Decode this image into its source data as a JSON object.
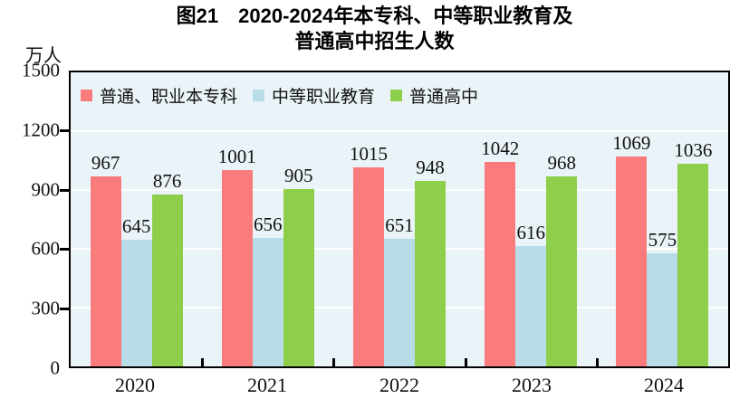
{
  "title": {
    "line1": "图21　2020-2024年本专科、中等职业教育及",
    "line2": "普通高中招生人数"
  },
  "unit_label": "万人",
  "colors": {
    "page_bg": "#ffffff",
    "plot_bg": "#eaf3f8",
    "gridline": "#ffffff",
    "axis": "#000000",
    "text": "#111111"
  },
  "chart_data": {
    "type": "bar",
    "title": "图21 2020-2024年本专科、中等职业教育及普通高中招生人数",
    "ylabel": "万人",
    "categories": [
      "2020",
      "2021",
      "2022",
      "2023",
      "2024"
    ],
    "series": [
      {
        "name": "普通、职业本专科",
        "color": "#f97b7b",
        "values": [
          967,
          1001,
          1015,
          1042,
          1069
        ]
      },
      {
        "name": "中等职业教育",
        "color": "#b9dce9",
        "values": [
          645,
          656,
          651,
          616,
          575
        ]
      },
      {
        "name": "普通高中",
        "color": "#8dce4b",
        "values": [
          876,
          905,
          948,
          968,
          1036
        ]
      }
    ],
    "ylim": [
      0,
      1500
    ],
    "yticks": [
      0,
      300,
      600,
      900,
      1200,
      1500
    ],
    "grid": true,
    "legend_position": "top-left-inside",
    "bar_value_labels": true
  }
}
